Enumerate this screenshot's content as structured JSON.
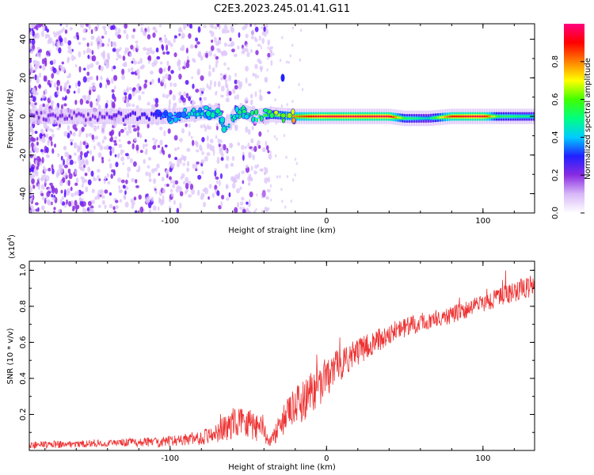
{
  "figure": {
    "title": "C2E3.2023.245.01.41.G11"
  },
  "chart_data": [
    {
      "type": "heatmap",
      "xlabel": "Height of straight line (km)",
      "ylabel": "Frequency (Hz)",
      "xlim": [
        -190,
        133
      ],
      "ylim": [
        -50,
        48
      ],
      "x_ticks": [
        -100,
        0,
        100
      ],
      "x_tick_labels": [
        "-100",
        "0",
        "100"
      ],
      "y_ticks": [
        -40,
        -20,
        0,
        20,
        40
      ],
      "y_tick_labels": [
        "-40",
        "-20",
        "0",
        "20",
        "40"
      ],
      "grid": false,
      "colorbar": {
        "label": "Normalized spectral amplitude",
        "range": [
          0,
          1
        ],
        "ticks": [
          0.0,
          0.2,
          0.4,
          0.6,
          0.8
        ],
        "tick_labels": [
          "0.0",
          "0.2",
          "0.4",
          "0.6",
          "0.8"
        ],
        "colormap": [
          "#ffffff",
          "#d8b8f8",
          "#8a2be2",
          "#2020ff",
          "#00ccff",
          "#00ff80",
          "#40ff00",
          "#ffff00",
          "#ff8000",
          "#ff0000",
          "#ff0080"
        ]
      },
      "trace": [
        {
          "x": -190,
          "f": 0,
          "amp": 0.22
        },
        {
          "x": -150,
          "f": 0,
          "amp": 0.22
        },
        {
          "x": -110,
          "f": 0,
          "amp": 0.3
        },
        {
          "x": -100,
          "f": 0,
          "amp": 0.4
        },
        {
          "x": -80,
          "f": 2,
          "amp": 0.45
        },
        {
          "x": -70,
          "f": 2,
          "amp": 0.45
        },
        {
          "x": -65,
          "f": -5,
          "amp": 0.45
        },
        {
          "x": -55,
          "f": 3,
          "amp": 0.5
        },
        {
          "x": -45,
          "f": 0,
          "amp": 0.55
        },
        {
          "x": -35,
          "f": 1,
          "amp": 0.6
        },
        {
          "x": -20,
          "f": 0,
          "amp": 0.8
        },
        {
          "x": -10,
          "f": 0,
          "amp": 0.9
        },
        {
          "x": 0,
          "f": 0,
          "amp": 0.95
        },
        {
          "x": 40,
          "f": 0,
          "amp": 0.95
        },
        {
          "x": 50,
          "f": -1,
          "amp": 0.55
        },
        {
          "x": 65,
          "f": -1,
          "amp": 0.45
        },
        {
          "x": 80,
          "f": 0,
          "amp": 0.9
        },
        {
          "x": 100,
          "f": 0,
          "amp": 0.95
        },
        {
          "x": 110,
          "f": 0,
          "amp": 0.55
        },
        {
          "x": 133,
          "f": 0,
          "amp": 0.5
        }
      ],
      "noise_region": {
        "x_start": -190,
        "x_end": -35,
        "density": "decreasing",
        "color": "#6a00ff"
      },
      "extra_features": [
        {
          "x": -28,
          "f": 20,
          "amp": 0.3
        },
        {
          "x": -40,
          "f": -40,
          "amp": 0.15
        }
      ]
    },
    {
      "type": "line",
      "xlabel": "Height of straight line (km)",
      "ylabel": "SNR (10 * v/v)",
      "y_multiplier_label": "(x10",
      "y_multiplier_exp": "4",
      "y_multiplier_close": ")",
      "xlim": [
        -190,
        133
      ],
      "ylim": [
        0,
        1.05
      ],
      "x_ticks": [
        -100,
        0,
        100
      ],
      "x_tick_labels": [
        "-100",
        "0",
        "100"
      ],
      "y_ticks": [
        0.2,
        0.4,
        0.6,
        0.8,
        1.0
      ],
      "y_tick_labels": [
        "0.2",
        "0.4",
        "0.6",
        "0.8",
        "1.0"
      ],
      "grid": false,
      "series": [
        {
          "color": "#ee3333",
          "envelope": [
            {
              "x": -190,
              "y": 0.03,
              "noise": 0.02
            },
            {
              "x": -140,
              "y": 0.04,
              "noise": 0.02
            },
            {
              "x": -100,
              "y": 0.05,
              "noise": 0.03
            },
            {
              "x": -80,
              "y": 0.07,
              "noise": 0.04
            },
            {
              "x": -65,
              "y": 0.12,
              "noise": 0.07
            },
            {
              "x": -55,
              "y": 0.18,
              "noise": 0.1
            },
            {
              "x": -45,
              "y": 0.14,
              "noise": 0.09
            },
            {
              "x": -35,
              "y": 0.06,
              "noise": 0.04
            },
            {
              "x": -25,
              "y": 0.2,
              "noise": 0.1
            },
            {
              "x": -15,
              "y": 0.28,
              "noise": 0.12
            },
            {
              "x": -5,
              "y": 0.36,
              "noise": 0.12
            },
            {
              "x": 5,
              "y": 0.45,
              "noise": 0.1
            },
            {
              "x": 15,
              "y": 0.52,
              "noise": 0.08
            },
            {
              "x": 25,
              "y": 0.57,
              "noise": 0.07
            },
            {
              "x": 40,
              "y": 0.65,
              "noise": 0.06
            },
            {
              "x": 60,
              "y": 0.71,
              "noise": 0.05
            },
            {
              "x": 80,
              "y": 0.75,
              "noise": 0.05
            },
            {
              "x": 100,
              "y": 0.82,
              "noise": 0.05
            },
            {
              "x": 120,
              "y": 0.88,
              "noise": 0.06
            },
            {
              "x": 133,
              "y": 0.92,
              "noise": 0.06
            }
          ]
        }
      ]
    }
  ]
}
